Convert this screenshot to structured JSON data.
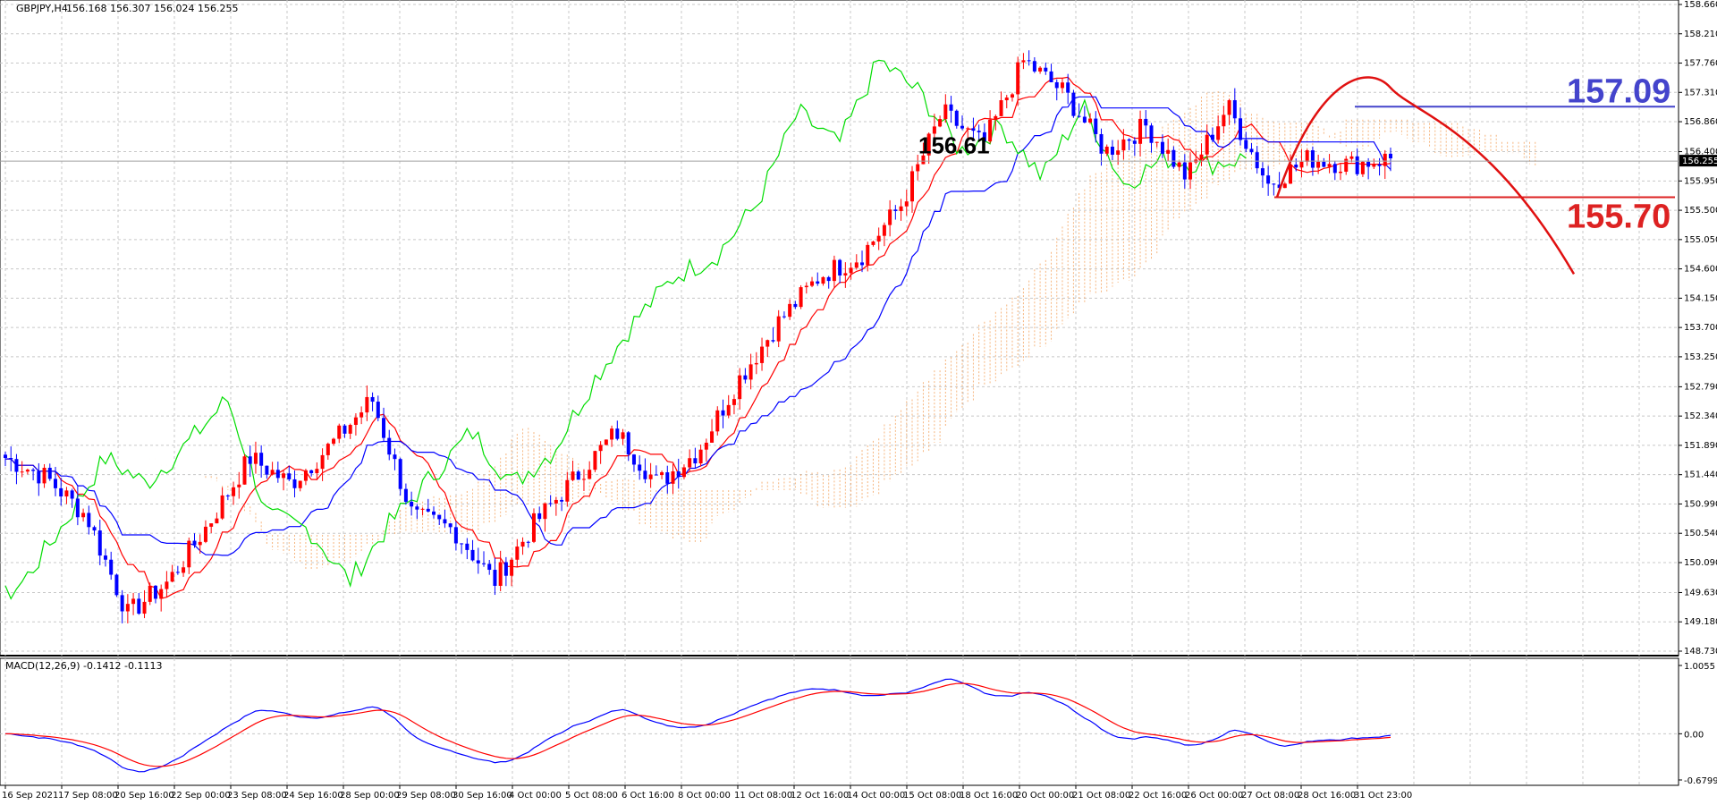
{
  "chart_data": {
    "type": "candlestick",
    "symbol_header": "GBPJPY,H4",
    "ohlc_header": "156.168 156.307 156.024 156.255",
    "last_price_label": "156.255",
    "price_axis_labels": [
      "158.660",
      "158.210",
      "157.760",
      "157.310",
      "156.860",
      "156.400",
      "155.950",
      "155.500",
      "155.050",
      "154.600",
      "154.150",
      "153.700",
      "153.250",
      "152.790",
      "152.340",
      "151.890",
      "151.440",
      "150.990",
      "150.540",
      "150.090",
      "149.630",
      "149.180",
      "148.730"
    ],
    "price_range": [
      148.73,
      158.66
    ],
    "macd_header": "MACD(12,26,9) -0.1412 -0.1113",
    "macd_axis_labels": [
      "1.0055",
      "0.00",
      "-0.6799"
    ],
    "macd_range": [
      -0.6799,
      1.0055
    ],
    "time_labels": [
      "16 Sep 2021",
      "17 Sep 08:00",
      "20 Sep 16:00",
      "22 Sep 00:00",
      "23 Sep 08:00",
      "24 Sep 16:00",
      "28 Sep 00:00",
      "29 Sep 08:00",
      "30 Sep 16:00",
      "4 Oct 00:00",
      "5 Oct 08:00",
      "6 Oct 16:00",
      "8 Oct 00:00",
      "11 Oct 08:00",
      "12 Oct 16:00",
      "14 Oct 00:00",
      "15 Oct 08:00",
      "18 Oct 16:00",
      "20 Oct 00:00",
      "21 Oct 08:00",
      "22 Oct 16:00",
      "26 Oct 00:00",
      "27 Oct 08:00",
      "28 Oct 16:00",
      "31 Oct 23:00"
    ],
    "annotations": {
      "level_high": "157.09",
      "level_low": "155.70",
      "peak_label": "156.61"
    },
    "candle_anchor_closes": [
      151.7,
      151.4,
      150.8,
      149.3,
      149.8,
      150.7,
      151.7,
      151.3,
      151.9,
      152.6,
      150.8,
      150.6,
      149.8,
      150.7,
      151.4,
      152.1,
      151.3,
      151.8,
      152.9,
      153.8,
      154.5,
      154.8,
      155.6,
      157.0,
      156.5,
      157.8,
      157.3,
      156.4,
      156.8,
      156.0,
      157.1,
      155.9,
      156.3,
      156.2,
      156.3
    ],
    "colors": {
      "bull_candle": "#ff0000",
      "bear_candle": "#0000ff",
      "tenkan": "#ff0000",
      "kijun": "#0000ff",
      "chikou": "#00dd00",
      "cloud": "#f4a460",
      "macd_main": "#0000ff",
      "macd_signal": "#ff0000",
      "level_high_color": "#4444cc",
      "level_low_color": "#dd2222",
      "grid": "#c8c8c8"
    }
  }
}
